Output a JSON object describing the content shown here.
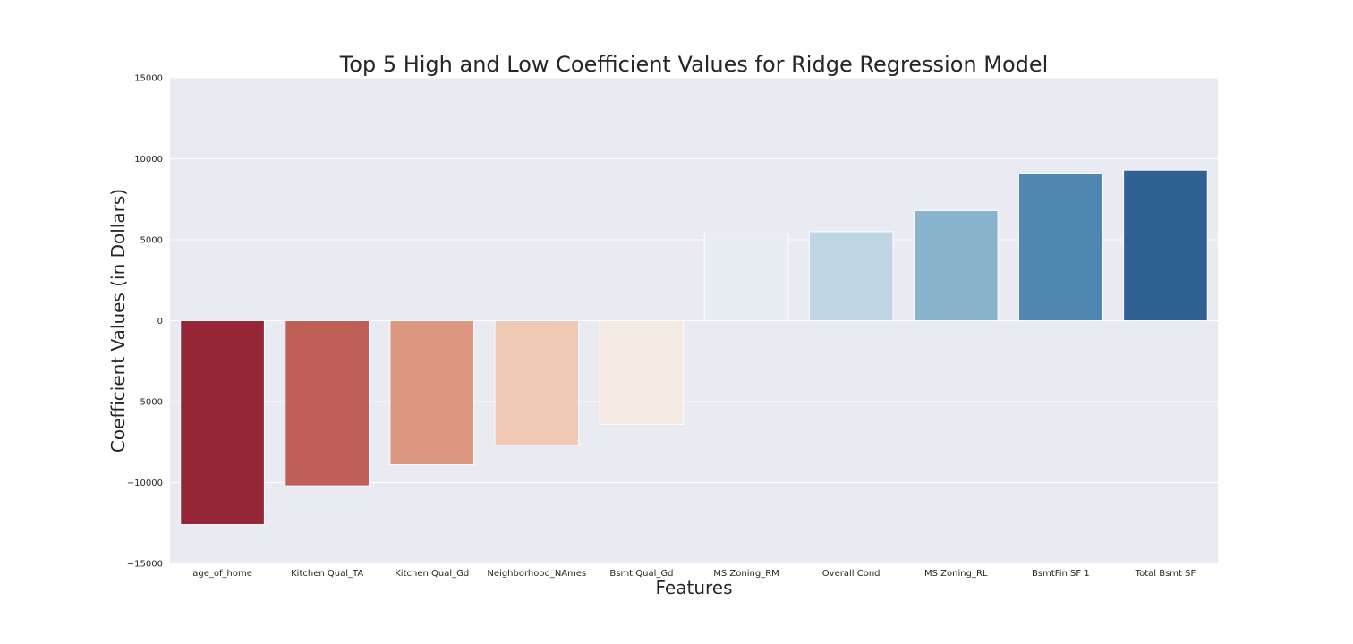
{
  "chart_data": {
    "type": "bar",
    "title": "Top 5 High and Low Coefficient Values for Ridge Regression Model",
    "xlabel": "Features",
    "ylabel": "Coefficient Values (in Dollars)",
    "ylim": [
      -15000,
      15000
    ],
    "yticks": [
      15000,
      10000,
      5000,
      0,
      -5000,
      -10000,
      -15000
    ],
    "ytick_labels": [
      "15000",
      "10000",
      "5000",
      "0",
      "−5000",
      "−10000",
      "−15000"
    ],
    "grid": true,
    "categories": [
      "age_of_home",
      "Kitchen Qual_TA",
      "Kitchen Qual_Gd",
      "Neighborhood_NAmes",
      "Bsmt Qual_Gd",
      "MS Zoning_RM",
      "Overall Cond",
      "MS Zoning_RL",
      "BsmtFin SF 1",
      "Total Bsmt SF"
    ],
    "values": [
      -12600,
      -10200,
      -8900,
      -7700,
      -6400,
      5400,
      5500,
      6800,
      9100,
      9300
    ],
    "colors": [
      "#962636",
      "#c05f57",
      "#dc9781",
      "#f0cab6",
      "#f6ebe3",
      "#e7edf2",
      "#c0d6e4",
      "#89b3cd",
      "#4f87b0",
      "#2f6194"
    ],
    "background": "#eaeaf2",
    "grid_color": "#ffffff"
  }
}
